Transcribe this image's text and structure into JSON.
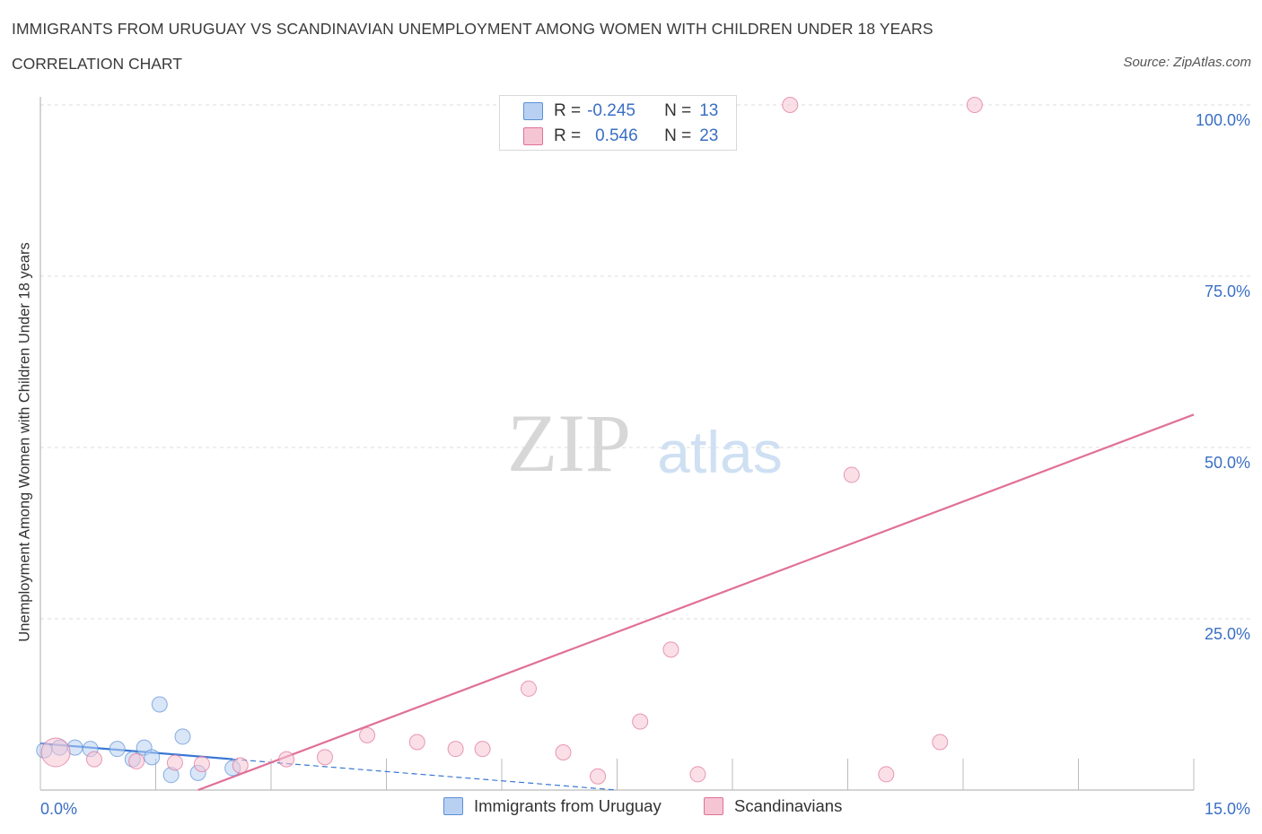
{
  "title": "IMMIGRANTS FROM URUGUAY VS SCANDINAVIAN UNEMPLOYMENT AMONG WOMEN WITH CHILDREN UNDER 18 YEARS",
  "subtitle": "CORRELATION CHART",
  "source": "Source: ZipAtlas.com",
  "watermark": {
    "zip": "ZIP",
    "atlas": "atlas"
  },
  "colors": {
    "blue": "#5b8fd6",
    "blue_fill": "#b8d1f3",
    "pink": "#e07098",
    "pink_fill": "#f6c5d3",
    "axis_label": "#3a6fc4"
  },
  "legend_stats": [
    {
      "r_label": "R =",
      "r_value": "-0.245",
      "n_label": "N =",
      "n_value": "13"
    },
    {
      "r_label": "R =",
      "r_value": "0.546",
      "n_label": "N =",
      "n_value": "23"
    }
  ],
  "chart_data": {
    "type": "scatter",
    "xlabel": "",
    "ylabel": "Unemployment Among Women with Children Under 18 years",
    "xlim": [
      0,
      15
    ],
    "ylim": [
      0,
      100
    ],
    "x_tick_labels": [
      "0.0%",
      "15.0%"
    ],
    "y_tick_labels": [
      "100.0%",
      "75.0%",
      "50.0%",
      "25.0%"
    ],
    "y_ticks": [
      100,
      75,
      50,
      25
    ],
    "series": [
      {
        "name": "Immigrants from Uruguay",
        "color": "#5b8fd6",
        "points": [
          {
            "x": 0.05,
            "y": 5.8
          },
          {
            "x": 0.25,
            "y": 6.2
          },
          {
            "x": 0.45,
            "y": 6.2
          },
          {
            "x": 0.65,
            "y": 6.0
          },
          {
            "x": 1.0,
            "y": 6.0
          },
          {
            "x": 1.2,
            "y": 4.5
          },
          {
            "x": 1.35,
            "y": 6.2
          },
          {
            "x": 1.45,
            "y": 4.8
          },
          {
            "x": 1.55,
            "y": 12.5
          },
          {
            "x": 1.7,
            "y": 2.2
          },
          {
            "x": 1.85,
            "y": 7.8
          },
          {
            "x": 2.05,
            "y": 2.5
          },
          {
            "x": 2.5,
            "y": 3.2
          }
        ],
        "trend": {
          "x0": 0.0,
          "y0": 6.8,
          "x1": 2.5,
          "y1": 4.5,
          "dash_to_x": 7.5,
          "dash_to_y": 0.0
        }
      },
      {
        "name": "Scandinavians",
        "color": "#e07098",
        "points": [
          {
            "x": 0.2,
            "y": 5.5,
            "big": true
          },
          {
            "x": 0.7,
            "y": 4.5
          },
          {
            "x": 1.25,
            "y": 4.2
          },
          {
            "x": 1.75,
            "y": 4.0
          },
          {
            "x": 2.1,
            "y": 3.8
          },
          {
            "x": 2.6,
            "y": 3.6
          },
          {
            "x": 3.2,
            "y": 4.5
          },
          {
            "x": 3.7,
            "y": 4.8
          },
          {
            "x": 4.25,
            "y": 8.0
          },
          {
            "x": 4.9,
            "y": 7.0
          },
          {
            "x": 5.4,
            "y": 6.0
          },
          {
            "x": 5.75,
            "y": 6.0
          },
          {
            "x": 6.35,
            "y": 14.8
          },
          {
            "x": 6.8,
            "y": 5.5
          },
          {
            "x": 7.25,
            "y": 2.0
          },
          {
            "x": 7.8,
            "y": 10.0
          },
          {
            "x": 8.2,
            "y": 20.5
          },
          {
            "x": 8.55,
            "y": 2.3
          },
          {
            "x": 9.75,
            "y": 100.0
          },
          {
            "x": 10.55,
            "y": 46.0
          },
          {
            "x": 11.0,
            "y": 2.3
          },
          {
            "x": 11.7,
            "y": 7.0
          },
          {
            "x": 12.15,
            "y": 100.0
          }
        ],
        "trend": {
          "x0": 2.05,
          "y0": 0.0,
          "x1": 15.0,
          "y1": 54.8
        }
      }
    ]
  },
  "bottom_legend": [
    "Immigrants from Uruguay",
    "Scandinavians"
  ]
}
